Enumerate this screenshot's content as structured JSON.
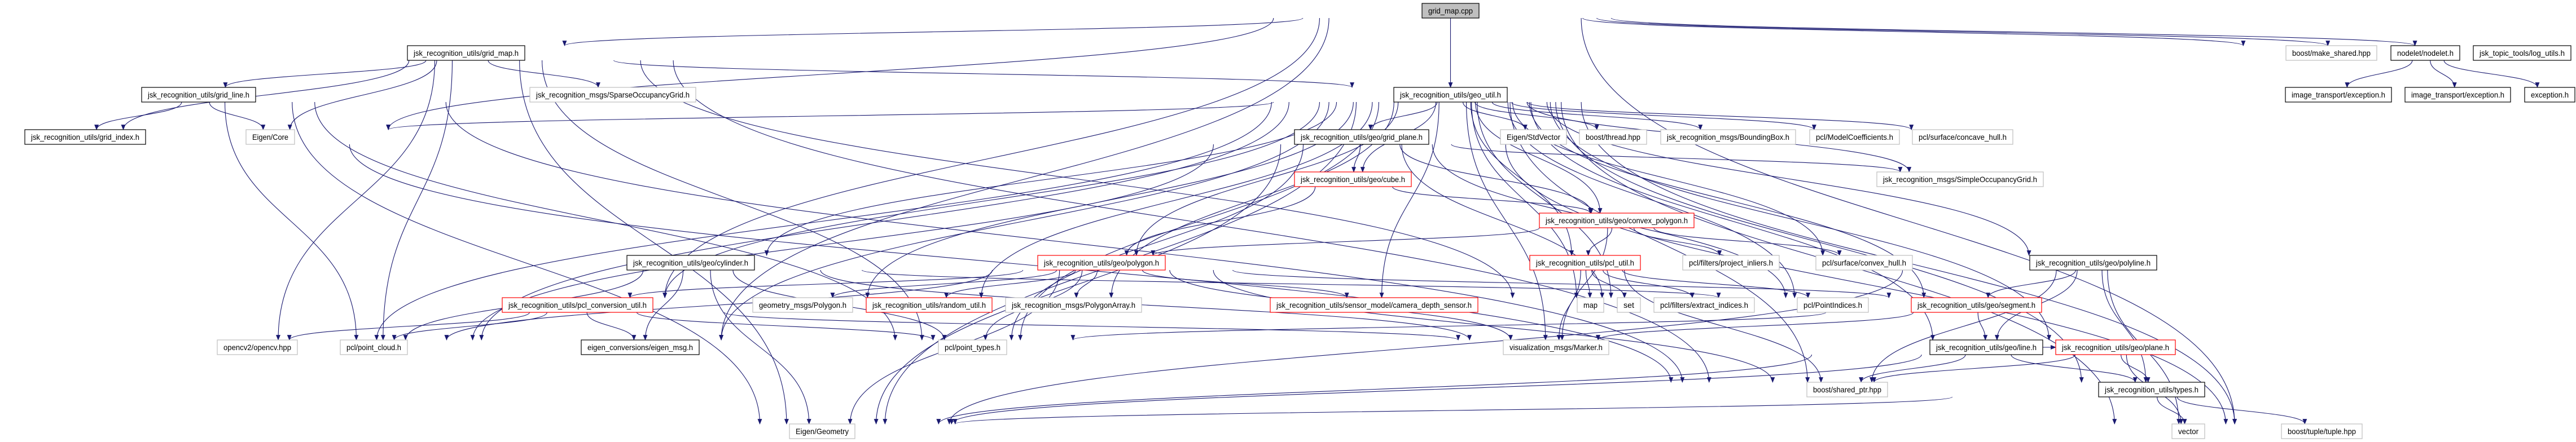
{
  "graph": {
    "type": "include-dependency-graph",
    "colors": {
      "edge": "#191970",
      "root_fill": "#bfbfbf",
      "documented_border": "#000000",
      "external_border": "#bfbfbf",
      "truncated_border": "#ff0000"
    },
    "nodes": [
      {
        "id": "grid_map_cpp",
        "label": "grid_map.cpp",
        "kind": "root"
      },
      {
        "id": "grid_map_h",
        "label": "jsk_recognition_utils/grid_map.h",
        "kind": "documented"
      },
      {
        "id": "geo_util",
        "label": "jsk_recognition_utils/geo_util.h",
        "kind": "documented"
      },
      {
        "id": "make_shared",
        "label": "boost/make_shared.hpp",
        "kind": "external"
      },
      {
        "id": "nodelet",
        "label": "nodelet/nodelet.h",
        "kind": "documented"
      },
      {
        "id": "log_utils",
        "label": "jsk_topic_tools/log_utils.h",
        "kind": "documented"
      },
      {
        "id": "it_exc1",
        "label": "image_transport/exception.h",
        "kind": "documented"
      },
      {
        "id": "it_exc2",
        "label": "image_transport/exception.h",
        "kind": "documented"
      },
      {
        "id": "exception",
        "label": "exception.h",
        "kind": "documented"
      },
      {
        "id": "grid_line",
        "label": "jsk_recognition_utils/grid_line.h",
        "kind": "documented"
      },
      {
        "id": "grid_index",
        "label": "jsk_recognition_utils/grid_index.h",
        "kind": "documented"
      },
      {
        "id": "eigen_core",
        "label": "Eigen/Core",
        "kind": "external"
      },
      {
        "id": "sparse_grid",
        "label": "jsk_recognition_msgs/SparseOccupancyGrid.h",
        "kind": "external"
      },
      {
        "id": "grid_plane",
        "label": "jsk_recognition_utils/geo/grid_plane.h",
        "kind": "documented"
      },
      {
        "id": "stdvector",
        "label": "Eigen/StdVector",
        "kind": "external"
      },
      {
        "id": "thread",
        "label": "boost/thread.hpp",
        "kind": "external"
      },
      {
        "id": "bbox",
        "label": "jsk_recognition_msgs/BoundingBox.h",
        "kind": "external"
      },
      {
        "id": "modelcoef",
        "label": "pcl/ModelCoefficients.h",
        "kind": "external"
      },
      {
        "id": "concave",
        "label": "pcl/surface/concave_hull.h",
        "kind": "external"
      },
      {
        "id": "cube",
        "label": "jsk_recognition_utils/geo/cube.h",
        "kind": "truncated"
      },
      {
        "id": "simple_grid",
        "label": "jsk_recognition_msgs/SimpleOccupancyGrid.h",
        "kind": "external"
      },
      {
        "id": "convex_polygon",
        "label": "jsk_recognition_utils/geo/convex_polygon.h",
        "kind": "truncated"
      },
      {
        "id": "cylinder",
        "label": "jsk_recognition_utils/geo/cylinder.h",
        "kind": "documented"
      },
      {
        "id": "project_inliers",
        "label": "pcl/filters/project_inliers.h",
        "kind": "external"
      },
      {
        "id": "convex_hull",
        "label": "pcl/surface/convex_hull.h",
        "kind": "external"
      },
      {
        "id": "polygon",
        "label": "jsk_recognition_utils/geo/polygon.h",
        "kind": "truncated"
      },
      {
        "id": "pcl_util",
        "label": "jsk_recognition_utils/pcl_util.h",
        "kind": "truncated"
      },
      {
        "id": "polyline",
        "label": "jsk_recognition_utils/geo/polyline.h",
        "kind": "documented"
      },
      {
        "id": "pcl_conv",
        "label": "jsk_recognition_utils/pcl_conversion_util.h",
        "kind": "truncated"
      },
      {
        "id": "geom_polygon",
        "label": "geometry_msgs/Polygon.h",
        "kind": "external"
      },
      {
        "id": "random_util",
        "label": "jsk_recognition_utils/random_util.h",
        "kind": "truncated"
      },
      {
        "id": "polygon_array",
        "label": "jsk_recognition_msgs/PolygonArray.h",
        "kind": "external"
      },
      {
        "id": "camera_depth",
        "label": "jsk_recognition_utils/sensor_model/camera_depth_sensor.h",
        "kind": "truncated"
      },
      {
        "id": "map",
        "label": "map",
        "kind": "external"
      },
      {
        "id": "set",
        "label": "set",
        "kind": "external"
      },
      {
        "id": "extract_indices",
        "label": "pcl/filters/extract_indices.h",
        "kind": "external"
      },
      {
        "id": "point_indices",
        "label": "pcl/PointIndices.h",
        "kind": "external"
      },
      {
        "id": "segment",
        "label": "jsk_recognition_utils/geo/segment.h",
        "kind": "truncated"
      },
      {
        "id": "opencv",
        "label": "opencv2/opencv.hpp",
        "kind": "external"
      },
      {
        "id": "point_cloud",
        "label": "pcl/point_cloud.h",
        "kind": "external"
      },
      {
        "id": "eigen_msg",
        "label": "eigen_conversions/eigen_msg.h",
        "kind": "documented"
      },
      {
        "id": "point_types",
        "label": "pcl/point_types.h",
        "kind": "external"
      },
      {
        "id": "marker",
        "label": "visualization_msgs/Marker.h",
        "kind": "external"
      },
      {
        "id": "line",
        "label": "jsk_recognition_utils/geo/line.h",
        "kind": "documented"
      },
      {
        "id": "plane",
        "label": "jsk_recognition_utils/geo/plane.h",
        "kind": "truncated"
      },
      {
        "id": "shared_ptr",
        "label": "boost/shared_ptr.hpp",
        "kind": "external"
      },
      {
        "id": "types",
        "label": "jsk_recognition_utils/types.h",
        "kind": "documented"
      },
      {
        "id": "eigen_geometry",
        "label": "Eigen/Geometry",
        "kind": "external"
      },
      {
        "id": "vector",
        "label": "vector",
        "kind": "external"
      },
      {
        "id": "tuple",
        "label": "boost/tuple/tuple.hpp",
        "kind": "external"
      }
    ],
    "edges": [
      [
        "grid_map_cpp",
        "grid_map_h"
      ],
      [
        "grid_map_cpp",
        "geo_util"
      ],
      [
        "grid_map_cpp",
        "make_shared"
      ],
      [
        "grid_map_cpp",
        "nodelet"
      ],
      [
        "grid_map_cpp",
        "log_utils"
      ],
      [
        "grid_map_cpp",
        "eigen_core"
      ],
      [
        "grid_map_cpp",
        "pcl_conv"
      ],
      [
        "grid_map_cpp",
        "eigen_msg"
      ],
      [
        "grid_map_cpp",
        "tuple"
      ],
      [
        "nodelet",
        "it_exc1"
      ],
      [
        "nodelet",
        "it_exc2"
      ],
      [
        "nodelet",
        "exception"
      ],
      [
        "grid_map_h",
        "grid_line"
      ],
      [
        "grid_map_h",
        "grid_index"
      ],
      [
        "grid_map_h",
        "sparse_grid"
      ],
      [
        "grid_map_h",
        "eigen_core"
      ],
      [
        "grid_map_h",
        "opencv"
      ],
      [
        "grid_map_h",
        "point_cloud"
      ],
      [
        "grid_map_h",
        "point_types"
      ],
      [
        "grid_map_h",
        "eigen_geometry"
      ],
      [
        "grid_map_h",
        "set"
      ],
      [
        "grid_map_h",
        "shared_ptr"
      ],
      [
        "grid_map_h",
        "geo_util"
      ],
      [
        "grid_line",
        "grid_index"
      ],
      [
        "grid_line",
        "eigen_core"
      ],
      [
        "grid_line",
        "point_cloud"
      ],
      [
        "grid_line",
        "point_types"
      ],
      [
        "grid_line",
        "eigen_geometry"
      ],
      [
        "grid_line",
        "shared_ptr"
      ],
      [
        "grid_index",
        "shared_ptr"
      ],
      [
        "geo_util",
        "grid_plane"
      ],
      [
        "geo_util",
        "stdvector"
      ],
      [
        "geo_util",
        "thread"
      ],
      [
        "geo_util",
        "bbox"
      ],
      [
        "geo_util",
        "modelcoef"
      ],
      [
        "geo_util",
        "concave"
      ],
      [
        "geo_util",
        "simple_grid"
      ],
      [
        "geo_util",
        "cube"
      ],
      [
        "geo_util",
        "convex_polygon"
      ],
      [
        "geo_util",
        "cylinder"
      ],
      [
        "geo_util",
        "polygon"
      ],
      [
        "geo_util",
        "pcl_util"
      ],
      [
        "geo_util",
        "polyline"
      ],
      [
        "geo_util",
        "segment"
      ],
      [
        "geo_util",
        "line"
      ],
      [
        "geo_util",
        "plane"
      ],
      [
        "geo_util",
        "types"
      ],
      [
        "geo_util",
        "random_util"
      ],
      [
        "geo_util",
        "polygon_array"
      ],
      [
        "geo_util",
        "geom_polygon"
      ],
      [
        "geo_util",
        "camera_depth"
      ],
      [
        "geo_util",
        "map"
      ],
      [
        "geo_util",
        "set"
      ],
      [
        "geo_util",
        "point_cloud"
      ],
      [
        "geo_util",
        "point_types"
      ],
      [
        "geo_util",
        "marker"
      ],
      [
        "geo_util",
        "eigen_core"
      ],
      [
        "geo_util",
        "eigen_geometry"
      ],
      [
        "geo_util",
        "shared_ptr"
      ],
      [
        "geo_util",
        "vector"
      ],
      [
        "geo_util",
        "tuple"
      ],
      [
        "geo_util",
        "opencv"
      ],
      [
        "geo_util",
        "point_indices"
      ],
      [
        "geo_util",
        "convex_hull"
      ],
      [
        "geo_util",
        "pcl_conv"
      ],
      [
        "geo_util",
        "eigen_msg"
      ],
      [
        "grid_plane",
        "cube"
      ],
      [
        "grid_plane",
        "convex_polygon"
      ],
      [
        "grid_plane",
        "point_cloud"
      ],
      [
        "grid_plane",
        "eigen_geometry"
      ],
      [
        "grid_plane",
        "simple_grid"
      ],
      [
        "grid_plane",
        "set"
      ],
      [
        "grid_plane",
        "tuple"
      ],
      [
        "grid_plane",
        "point_indices"
      ],
      [
        "grid_plane",
        "point_types"
      ],
      [
        "cube",
        "polygon"
      ],
      [
        "cube",
        "convex_polygon"
      ],
      [
        "convex_polygon",
        "polygon"
      ],
      [
        "convex_polygon",
        "pcl_util"
      ],
      [
        "convex_polygon",
        "project_inliers"
      ],
      [
        "convex_polygon",
        "convex_hull"
      ],
      [
        "convex_polygon",
        "marker"
      ],
      [
        "polygon",
        "polygon_array"
      ],
      [
        "polygon",
        "geom_polygon"
      ],
      [
        "polygon",
        "random_util"
      ],
      [
        "polygon",
        "camera_depth"
      ],
      [
        "polygon",
        "pcl_conv"
      ],
      [
        "polygon",
        "point_cloud"
      ],
      [
        "polygon",
        "point_types"
      ],
      [
        "polygon",
        "eigen_geometry"
      ],
      [
        "polygon",
        "shared_ptr"
      ],
      [
        "polygon",
        "marker"
      ],
      [
        "polygon",
        "segment"
      ],
      [
        "cylinder",
        "point_types"
      ],
      [
        "cylinder",
        "point_cloud"
      ],
      [
        "cylinder",
        "eigen_geometry"
      ],
      [
        "cylinder",
        "marker"
      ],
      [
        "cylinder",
        "point_indices"
      ],
      [
        "cylinder",
        "eigen_msg"
      ],
      [
        "pcl_util",
        "map"
      ],
      [
        "pcl_util",
        "set"
      ],
      [
        "pcl_util",
        "extract_indices"
      ],
      [
        "pcl_util",
        "point_indices"
      ],
      [
        "pcl_util",
        "marker"
      ],
      [
        "pcl_util",
        "shared_ptr"
      ],
      [
        "polyline",
        "segment"
      ],
      [
        "polyline",
        "line"
      ],
      [
        "polyline",
        "types"
      ],
      [
        "polyline",
        "vector"
      ],
      [
        "polyline",
        "shared_ptr"
      ],
      [
        "polyline",
        "eigen_geometry"
      ],
      [
        "segment",
        "line"
      ],
      [
        "segment",
        "marker"
      ],
      [
        "segment",
        "point_types"
      ],
      [
        "line",
        "shared_ptr"
      ],
      [
        "line",
        "types"
      ],
      [
        "line",
        "eigen_geometry"
      ],
      [
        "line",
        "plane"
      ],
      [
        "plane",
        "types"
      ],
      [
        "plane",
        "vector"
      ],
      [
        "plane",
        "shared_ptr"
      ],
      [
        "plane",
        "eigen_geometry"
      ],
      [
        "types",
        "vector"
      ],
      [
        "types",
        "tuple"
      ],
      [
        "types",
        "eigen_geometry"
      ],
      [
        "pcl_conv",
        "eigen_msg"
      ],
      [
        "pcl_conv",
        "point_cloud"
      ],
      [
        "pcl_conv",
        "point_types"
      ],
      [
        "pcl_conv",
        "opencv"
      ],
      [
        "pcl_conv",
        "marker"
      ]
    ]
  }
}
